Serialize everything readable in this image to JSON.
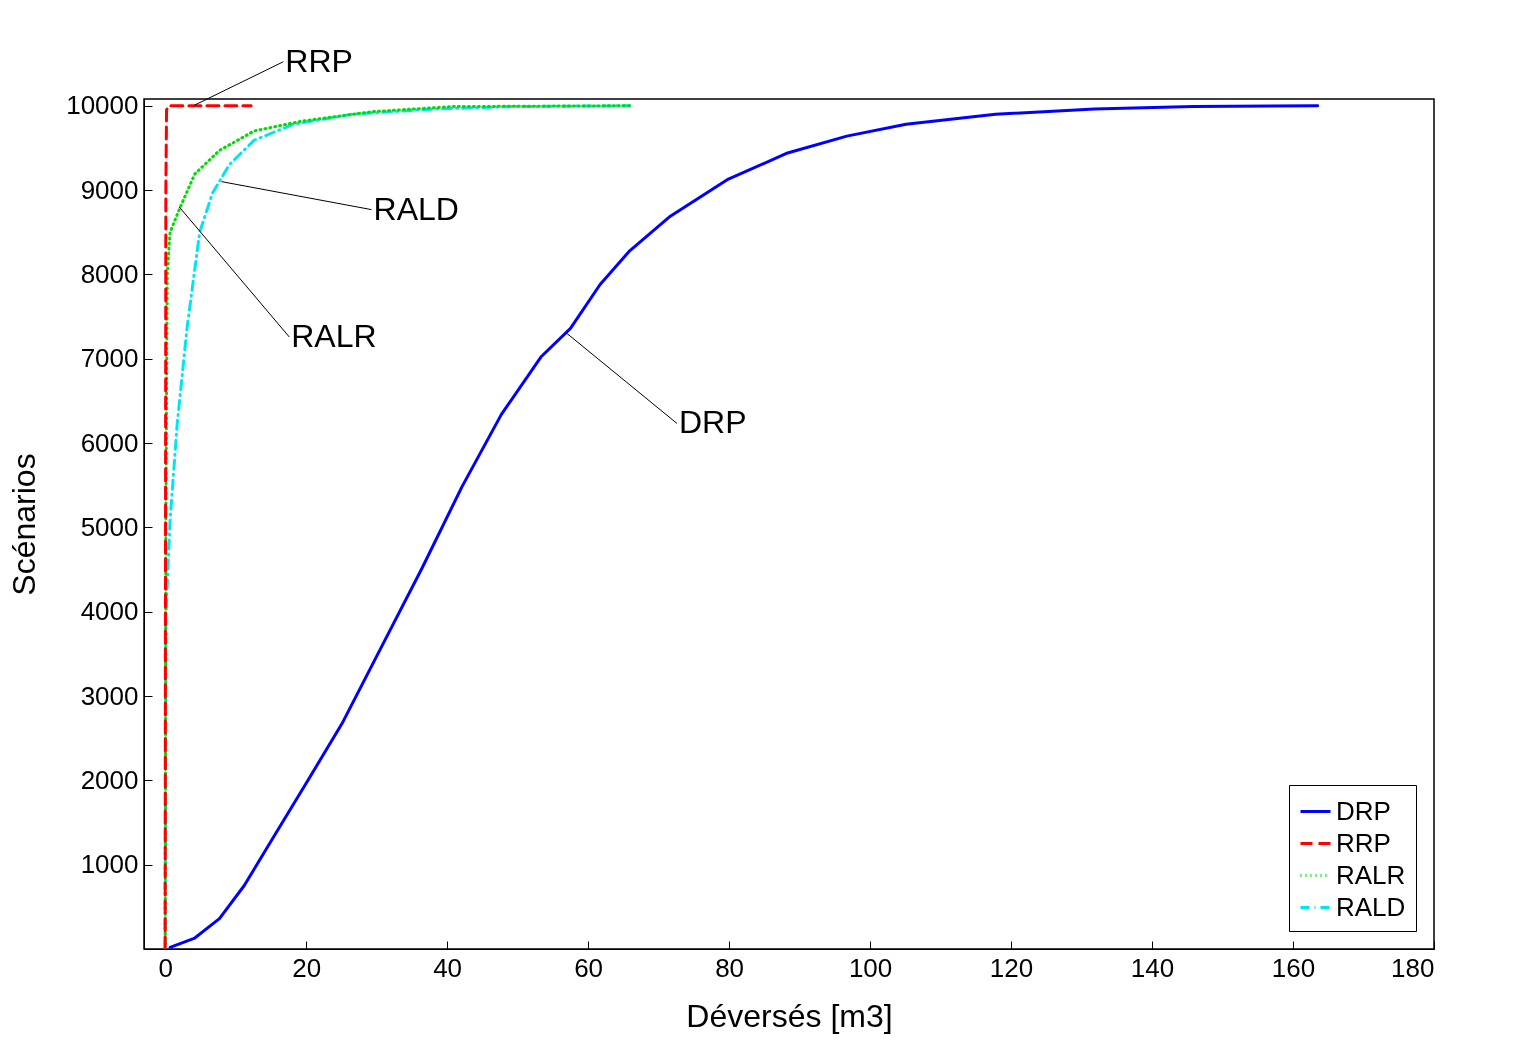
{
  "chart_data": {
    "type": "line",
    "xlabel": "Déversés [m3]",
    "ylabel": "Scénarios",
    "xlim": [
      -3,
      180
    ],
    "ylim": [
      0,
      10080
    ],
    "xticks": [
      0,
      20,
      40,
      60,
      80,
      100,
      120,
      140,
      160,
      180
    ],
    "yticks": [
      1000,
      2000,
      3000,
      4000,
      5000,
      6000,
      7000,
      8000,
      9000,
      10000
    ],
    "grid": false,
    "legend": "bottom right",
    "marker": "none",
    "series": [
      {
        "name": "DRP",
        "color": "#0000ff",
        "line_style": "solid",
        "x": [
          0.7,
          4.2,
          7.7,
          11.2,
          15.4,
          19.9,
          25.2,
          30.8,
          36.4,
          42.1,
          47.7,
          53.3,
          57.5,
          61.7,
          65.9,
          71.5,
          79.9,
          88.3,
          96.7,
          105.1,
          117.8,
          131.8,
          145.8,
          163.5
        ],
        "values": [
          20,
          130,
          360,
          750,
          1330,
          1950,
          2690,
          3600,
          4510,
          5480,
          6340,
          7020,
          7360,
          7880,
          8280,
          8680,
          9130,
          9440,
          9640,
          9780,
          9900,
          9960,
          9990,
          10000
        ]
      },
      {
        "name": "RRP",
        "color": "#ff0000",
        "line_style": "dashed",
        "x": [
          0,
          0.1,
          0.2,
          0.5,
          12.2
        ],
        "values": [
          0,
          9000,
          9950,
          10000,
          10000
        ]
      },
      {
        "name": "RALR",
        "color": "#00dd00",
        "line_style": "dotted",
        "x": [
          0,
          0.1,
          0.3,
          0.7,
          2.1,
          4.2,
          7.7,
          12.6,
          19.6,
          29.4,
          40.7,
          65.9
        ],
        "values": [
          0,
          5000,
          8000,
          8500,
          8790,
          9190,
          9470,
          9700,
          9820,
          9930,
          9990,
          10000
        ]
      },
      {
        "name": "RALD",
        "color": "#00e5ee",
        "line_style": "dashdot",
        "x": [
          0,
          0.1,
          0.7,
          1.7,
          3.1,
          4.9,
          6.7,
          9.1,
          12.6,
          18.2,
          26.6,
          37.9,
          49.1,
          65.9
        ],
        "values": [
          0,
          3940,
          5080,
          6220,
          7360,
          8500,
          8960,
          9300,
          9590,
          9780,
          9900,
          9960,
          9990,
          10000
        ]
      }
    ],
    "annotations": [
      {
        "text": "RRP",
        "x": 4,
        "y": 10000
      },
      {
        "text": "RALD",
        "x": 8,
        "y": 9100
      },
      {
        "text": "RALR",
        "x": 2,
        "y": 8800
      },
      {
        "text": "DRP",
        "x": 57,
        "y": 7300
      }
    ]
  }
}
